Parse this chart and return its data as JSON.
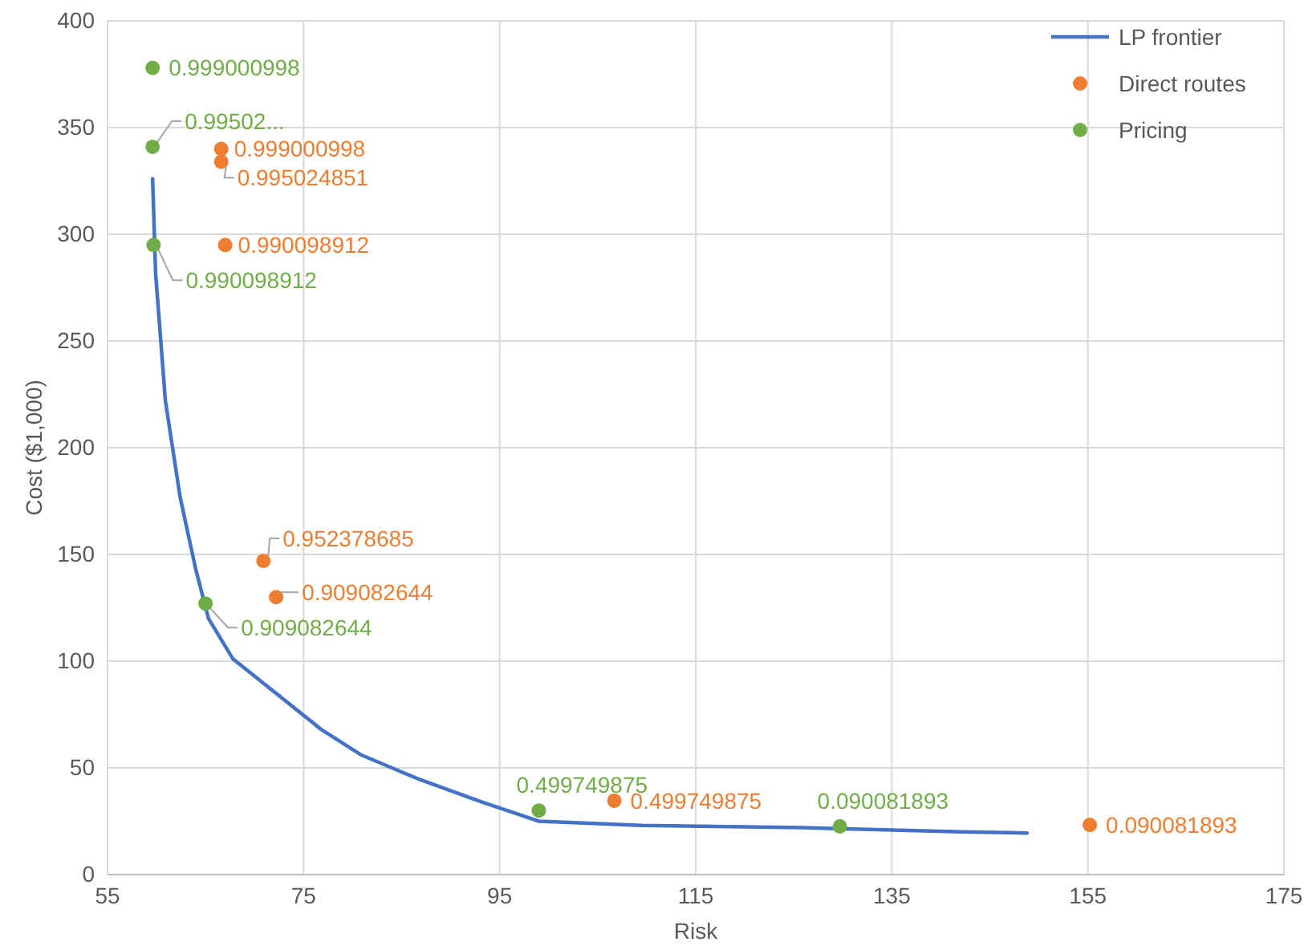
{
  "chart_data": {
    "type": "scatter",
    "xlabel": "Risk",
    "ylabel": "Cost ($1,000)",
    "xlim": [
      55,
      175
    ],
    "xticks": [
      55,
      75,
      95,
      115,
      135,
      155,
      175
    ],
    "ylim": [
      0,
      400
    ],
    "yticks": [
      0,
      50,
      100,
      150,
      200,
      250,
      300,
      350,
      400
    ],
    "grid": true,
    "legend": "top right",
    "marker": "circle",
    "series": [
      {
        "name": "LP frontier",
        "type": "line",
        "marker": "none",
        "color": "#4472c4",
        "x": [
          59.6,
          59.9,
          60.9,
          62.4,
          64,
          65.3,
          67.8,
          71.9,
          76.8,
          80.9,
          86.6,
          93.2,
          99,
          109.5,
          125.9,
          142.2,
          148.8
        ],
        "values": [
          326,
          282,
          222,
          177,
          143,
          120,
          101,
          86,
          68,
          56,
          45,
          34,
          25,
          23,
          22,
          20,
          19.5
        ]
      },
      {
        "name": "Direct routes",
        "type": "scatter",
        "color": "#ed7d31",
        "x": [
          66.6,
          66.6,
          67,
          70.9,
          72.2,
          106.7,
          155.2
        ],
        "values": [
          340,
          334,
          295,
          147,
          130,
          34.6,
          23.3
        ]
      },
      {
        "name": "Pricing",
        "type": "scatter",
        "color": "#70ad47",
        "x": [
          59.6,
          59.6,
          59.7,
          65,
          99,
          129.7
        ],
        "values": [
          378,
          341,
          295,
          127,
          30,
          22.6
        ]
      }
    ],
    "annotations": [
      {
        "text": "0.999000998",
        "x": 59.6,
        "y": 378
      },
      {
        "text": "0.99502...",
        "x": 59.6,
        "y": 341
      },
      {
        "text": "0.990098912",
        "x": 59.7,
        "y": 295
      },
      {
        "text": "0.909082644",
        "x": 65,
        "y": 127
      },
      {
        "text": "0.499749875",
        "x": 99,
        "y": 30
      },
      {
        "text": "0.090081893",
        "x": 129.7,
        "y": 22.6
      },
      {
        "text": "0.999000998",
        "x": 66.6,
        "y": 340
      },
      {
        "text": "0.995024851",
        "x": 66.6,
        "y": 334
      },
      {
        "text": "0.990098912",
        "x": 67,
        "y": 295
      },
      {
        "text": "0.952378685",
        "x": 70.9,
        "y": 147
      },
      {
        "text": "0.909082644",
        "x": 72.2,
        "y": 130
      },
      {
        "text": "0.499749875",
        "x": 106.7,
        "y": 34.6
      },
      {
        "text": "0.090081893",
        "x": 155.2,
        "y": 23.3
      }
    ]
  }
}
